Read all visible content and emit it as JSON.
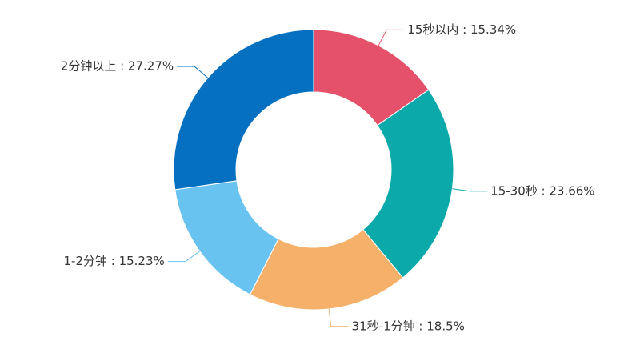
{
  "chart_data": {
    "type": "pie",
    "labels": [
      "15秒以内 : 15.34%",
      "15-30秒 : 23.66%",
      "31秒-1分钟 : 18.5%",
      "1-2分钟 : 15.23%",
      "2分钟以上 : 27.27%"
    ],
    "values": [
      15.34,
      23.66,
      18.5,
      15.23,
      27.27
    ],
    "colors": [
      "#e5506a",
      "#0ba9a9",
      "#f5b06a",
      "#69c3f0",
      "#0570c0"
    ]
  }
}
